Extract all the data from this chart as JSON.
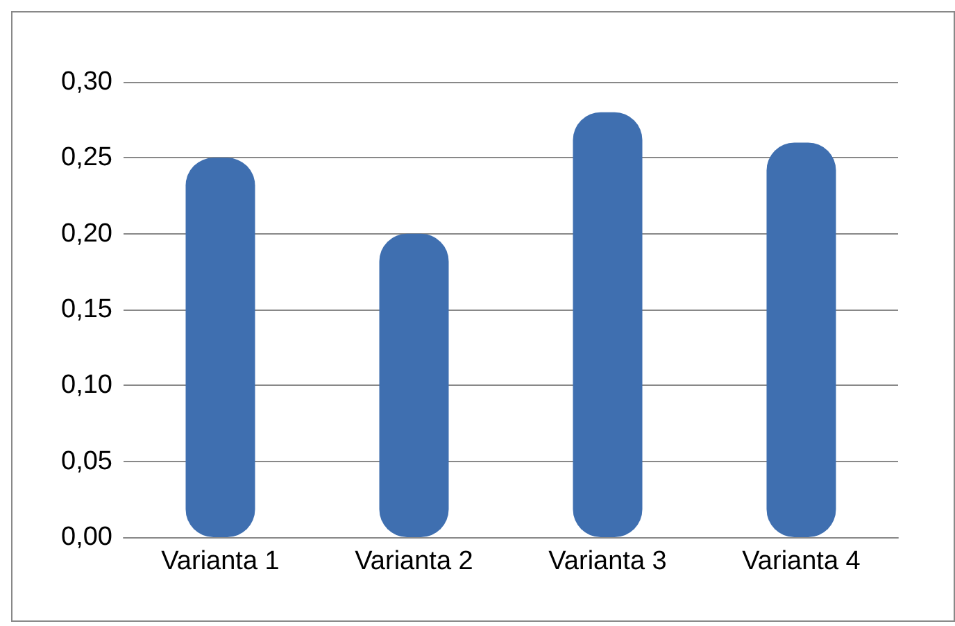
{
  "chart_data": {
    "type": "bar",
    "categories": [
      "Varianta 1",
      "Varianta 2",
      "Varianta 3",
      "Varianta 4"
    ],
    "values": [
      0.25,
      0.2,
      0.28,
      0.26
    ],
    "color": "#3f6fb0",
    "ylim": [
      0,
      0.3
    ],
    "yticks": [
      {
        "value": 0,
        "label": "0,00"
      },
      {
        "value": 0.05,
        "label": "0,05"
      },
      {
        "value": 0.1,
        "label": "0,10"
      },
      {
        "value": 0.15,
        "label": "0,15"
      },
      {
        "value": 0.2,
        "label": "0,20"
      },
      {
        "value": 0.25,
        "label": "0,25"
      },
      {
        "value": 0.3,
        "label": "0,30"
      }
    ],
    "grid": "y"
  }
}
